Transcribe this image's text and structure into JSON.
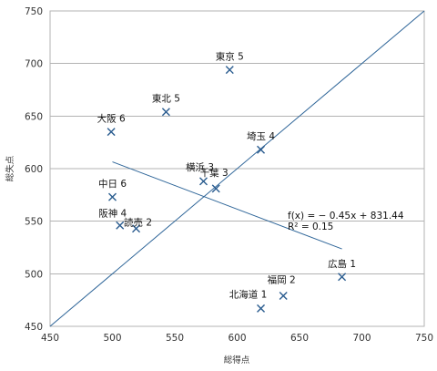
{
  "chart_data": {
    "type": "scatter",
    "title": "",
    "xlabel": "総得点",
    "ylabel": "総失点",
    "xlim": [
      450,
      750
    ],
    "ylim": [
      450,
      750
    ],
    "x_ticks": [
      450,
      500,
      550,
      600,
      650,
      700,
      750
    ],
    "y_ticks": [
      450,
      500,
      550,
      600,
      650,
      700,
      750
    ],
    "grid": "horizontal",
    "marker": "x",
    "marker_color": "#2a5c8f",
    "line_color": "#2f6699",
    "points": [
      {
        "x": 594,
        "y": 694,
        "label": "東京 5"
      },
      {
        "x": 543,
        "y": 654,
        "label": "東北 5"
      },
      {
        "x": 499,
        "y": 635,
        "label": "大阪 6"
      },
      {
        "x": 619,
        "y": 618,
        "label": "埼玉 4"
      },
      {
        "x": 573,
        "y": 588,
        "label": "横浜 3"
      },
      {
        "x": 583,
        "y": 581,
        "label": "千葉 3"
      },
      {
        "x": 500,
        "y": 573,
        "label": "中日 6"
      },
      {
        "x": 506,
        "y": 546,
        "label": "阪神 4"
      },
      {
        "x": 519,
        "y": 543,
        "label": "読売 2"
      },
      {
        "x": 684,
        "y": 497,
        "label": "広島 1"
      },
      {
        "x": 637,
        "y": 479,
        "label": "福岡 2"
      },
      {
        "x": 619,
        "y": 467,
        "label": "北海道 1"
      }
    ],
    "trendline": {
      "x_range": [
        500,
        684
      ],
      "slope": -0.45,
      "intercept": 831.44,
      "equation": "f(x) = − 0.45x + 831.44",
      "r2": "R² = 0.15"
    },
    "reference_line": {
      "x_range": [
        450,
        750
      ],
      "slope": 1,
      "intercept": 0
    }
  }
}
